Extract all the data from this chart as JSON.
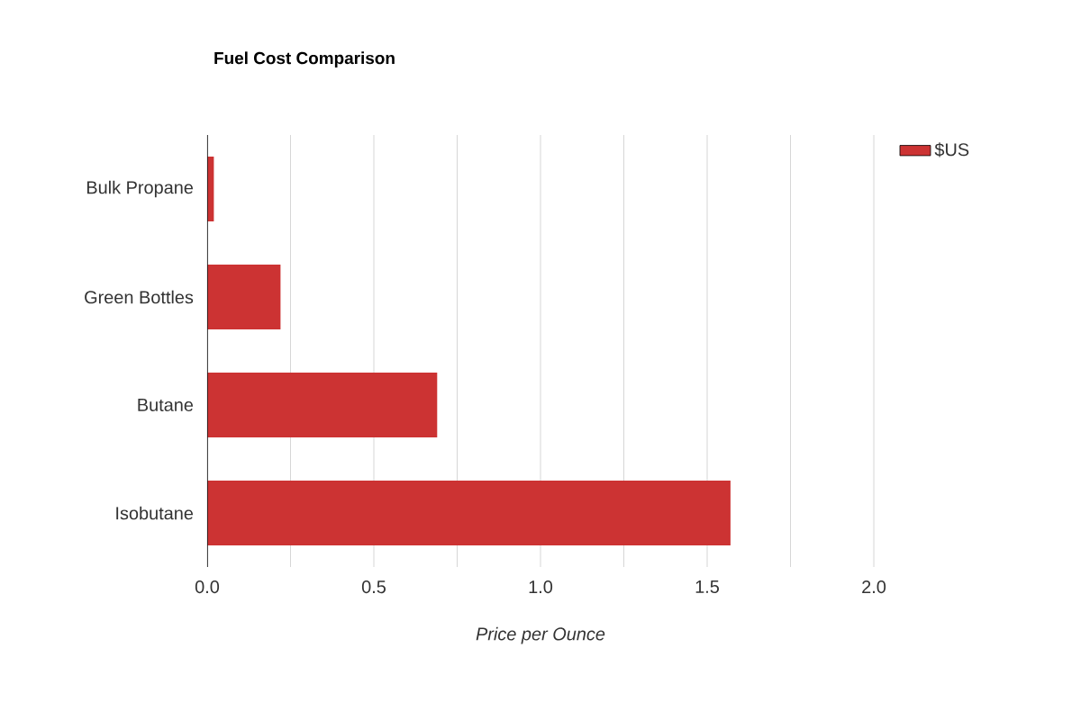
{
  "chart_data": {
    "type": "bar",
    "orientation": "horizontal",
    "title": "Fuel Cost Comparison",
    "xlabel": "Price per Ounce",
    "categories": [
      "Bulk Propane",
      "Green Bottles",
      "Butane",
      "Isobutane"
    ],
    "series": [
      {
        "name": "$US",
        "color": "#cc3333",
        "values": [
          0.02,
          0.22,
          0.69,
          1.57
        ]
      }
    ],
    "xlim": [
      0,
      2
    ],
    "xticks": [
      {
        "value": 0,
        "label": "0.0"
      },
      {
        "value": 0.25,
        "label": null
      },
      {
        "value": 0.5,
        "label": "0.5"
      },
      {
        "value": 0.75,
        "label": null
      },
      {
        "value": 1,
        "label": "1.0"
      },
      {
        "value": 1.25,
        "label": null
      },
      {
        "value": 1.5,
        "label": "1.5"
      },
      {
        "value": 1.75,
        "label": null
      },
      {
        "value": 2,
        "label": "2.0"
      }
    ],
    "grid": "x",
    "legend": "top right"
  }
}
